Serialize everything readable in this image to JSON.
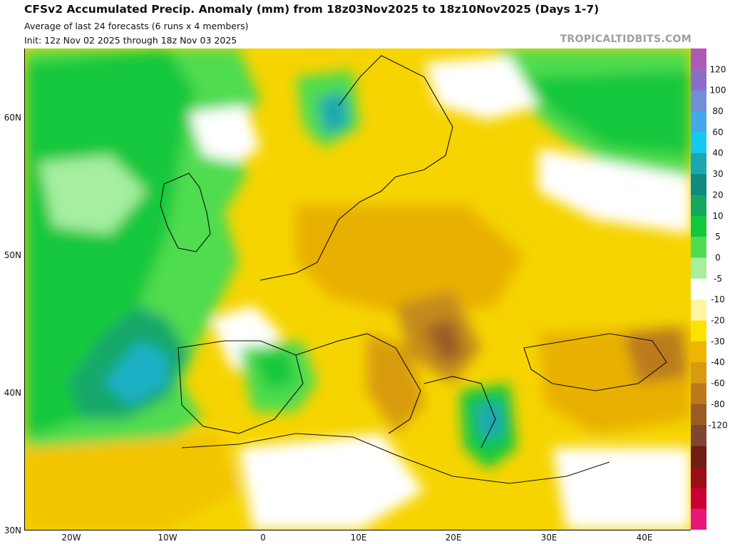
{
  "header": {
    "title": "CFSv2 Accumulated Precip. Anomaly (mm) from 18z03Nov2025 to 18z10Nov2025 (Days 1-7)",
    "subtitle1": "Average of last 24 forecasts (6 runs x 4 members)",
    "subtitle2": "Init: 12z Nov 02 2025 through 18z Nov 03 2025",
    "brand": "TROPICALTIDBITS.COM"
  },
  "map": {
    "lat_labels": [
      "60N",
      "50N",
      "40N",
      "30N"
    ],
    "lon_labels": [
      "20W",
      "10W",
      "0",
      "10E",
      "20E",
      "30E",
      "40E"
    ]
  },
  "colorbar": {
    "labels": [
      "120",
      "100",
      "80",
      "60",
      "40",
      "30",
      "20",
      "10",
      "5",
      "0",
      "-5",
      "-10",
      "-20",
      "-30",
      "-40",
      "-60",
      "-80",
      "-120"
    ],
    "colors": [
      "#b05ab8",
      "#8a6fc8",
      "#6f8fd8",
      "#43a9e8",
      "#16c8f0",
      "#1aa8b0",
      "#0f8a80",
      "#12a860",
      "#14c83c",
      "#50dc50",
      "#a6eea0",
      "#ffffff",
      "#fff5a0",
      "#fbe200",
      "#eeb600",
      "#d89b10",
      "#bb7a1e",
      "#9a5c26",
      "#7c4630",
      "#6e1e12",
      "#9a0e16",
      "#c80030",
      "#e8187a"
    ]
  }
}
